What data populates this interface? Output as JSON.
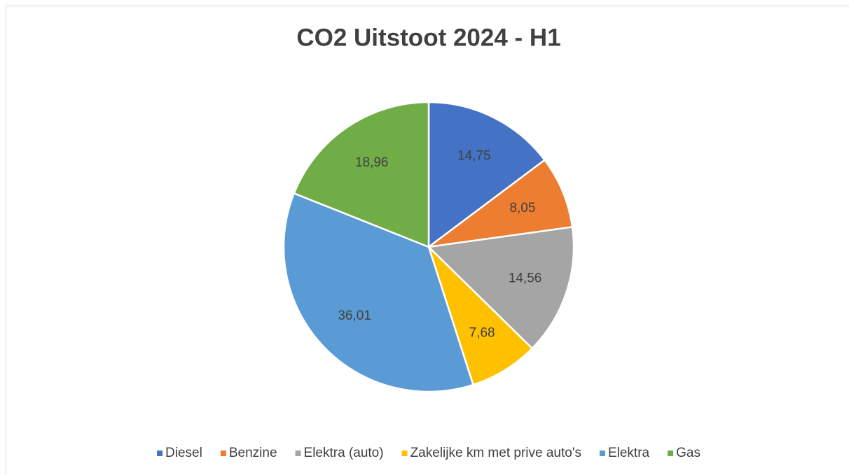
{
  "chart_data": {
    "type": "pie",
    "title": "CO2 Uitstoot 2024 - H1",
    "categories": [
      "Diesel",
      "Benzine",
      "Elektra (auto)",
      "Zakelijke km met prive auto's",
      "Elektra",
      "Gas"
    ],
    "values": [
      14.75,
      8.05,
      14.56,
      7.68,
      36.01,
      18.96
    ],
    "value_labels": [
      "14,75",
      "8,05",
      "14,56",
      "7,68",
      "36,01",
      "18,96"
    ],
    "colors": [
      "#4472c4",
      "#ed7d31",
      "#a5a5a5",
      "#ffc000",
      "#5b9bd5",
      "#70ad47"
    ],
    "legend": "bottom"
  }
}
